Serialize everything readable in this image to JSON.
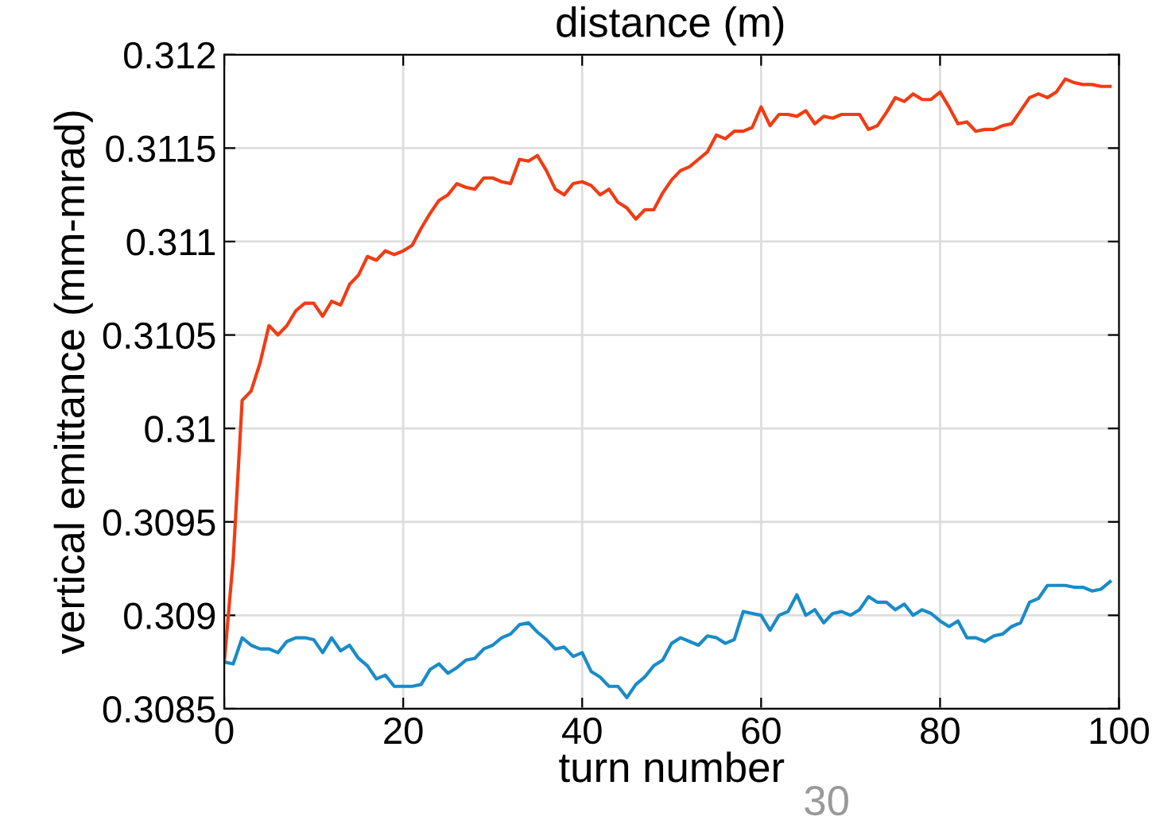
{
  "chart_data": {
    "type": "line",
    "xlabel": "turn number",
    "ylabel": "vertical emittance (mm-mrad)",
    "annotations": [
      "distance (m)",
      "30"
    ],
    "x": [
      0,
      1,
      2,
      3,
      4,
      5,
      6,
      7,
      8,
      9,
      10,
      11,
      12,
      13,
      14,
      15,
      16,
      17,
      18,
      19,
      20,
      21,
      22,
      23,
      24,
      25,
      26,
      27,
      28,
      29,
      30,
      31,
      32,
      33,
      34,
      35,
      36,
      37,
      38,
      39,
      40,
      41,
      42,
      43,
      44,
      45,
      46,
      47,
      48,
      49,
      50,
      51,
      52,
      53,
      54,
      55,
      56,
      57,
      58,
      59,
      60,
      61,
      62,
      63,
      64,
      65,
      66,
      67,
      68,
      69,
      70,
      71,
      72,
      73,
      74,
      75,
      76,
      77,
      78,
      79,
      80,
      81,
      82,
      83,
      84,
      85,
      86,
      87,
      88,
      89,
      90,
      91,
      92,
      93,
      94,
      95,
      96,
      97,
      98,
      99
    ],
    "series": [
      {
        "color": "#1a8bc8",
        "values": [
          0.30875,
          0.30874,
          0.30888,
          0.30884,
          0.30882,
          0.30882,
          0.3088,
          0.30886,
          0.30888,
          0.30888,
          0.30887,
          0.3088,
          0.30888,
          0.30881,
          0.30884,
          0.30877,
          0.30873,
          0.30866,
          0.30868,
          0.30862,
          0.30862,
          0.30862,
          0.30863,
          0.30871,
          0.30874,
          0.30869,
          0.30872,
          0.30876,
          0.30877,
          0.30882,
          0.30884,
          0.30888,
          0.3089,
          0.30895,
          0.30896,
          0.30891,
          0.30887,
          0.30882,
          0.30883,
          0.30878,
          0.3088,
          0.3087,
          0.30867,
          0.30862,
          0.30862,
          0.30856,
          0.30863,
          0.30867,
          0.30873,
          0.30876,
          0.30885,
          0.30888,
          0.30886,
          0.30884,
          0.30889,
          0.30888,
          0.30885,
          0.30887,
          0.30902,
          0.30901,
          0.309,
          0.30892,
          0.309,
          0.30902,
          0.30911,
          0.309,
          0.30903,
          0.30896,
          0.30901,
          0.30902,
          0.309,
          0.30903,
          0.3091,
          0.30907,
          0.30907,
          0.30903,
          0.30906,
          0.309,
          0.30903,
          0.30901,
          0.30897,
          0.30894,
          0.30897,
          0.30888,
          0.30888,
          0.30886,
          0.30889,
          0.3089,
          0.30894,
          0.30896,
          0.30907,
          0.30909,
          0.30916,
          0.30916,
          0.30916,
          0.30915,
          0.30915,
          0.30913,
          0.30914,
          0.30918
        ]
      },
      {
        "color": "#f03c14",
        "values": [
          0.30875,
          0.3093,
          0.31015,
          0.3102,
          0.31035,
          0.31055,
          0.3105,
          0.31055,
          0.31063,
          0.31067,
          0.31067,
          0.3106,
          0.31068,
          0.31066,
          0.31077,
          0.31082,
          0.31092,
          0.3109,
          0.31095,
          0.31093,
          0.31095,
          0.31098,
          0.31107,
          0.31115,
          0.31122,
          0.31125,
          0.31131,
          0.31129,
          0.31128,
          0.31134,
          0.31134,
          0.31132,
          0.31131,
          0.31144,
          0.31143,
          0.31146,
          0.31138,
          0.31128,
          0.31125,
          0.31131,
          0.31132,
          0.3113,
          0.31125,
          0.31128,
          0.31121,
          0.31118,
          0.31112,
          0.31117,
          0.31117,
          0.31126,
          0.31133,
          0.31138,
          0.3114,
          0.31144,
          0.31148,
          0.31157,
          0.31155,
          0.31159,
          0.31159,
          0.31161,
          0.31172,
          0.31162,
          0.31168,
          0.31168,
          0.31167,
          0.3117,
          0.31163,
          0.31167,
          0.31166,
          0.31168,
          0.31168,
          0.31168,
          0.3116,
          0.31162,
          0.31169,
          0.31177,
          0.31175,
          0.31179,
          0.31176,
          0.31176,
          0.3118,
          0.31172,
          0.31163,
          0.31164,
          0.31159,
          0.3116,
          0.3116,
          0.31162,
          0.31163,
          0.3117,
          0.31177,
          0.31179,
          0.31177,
          0.3118,
          0.31187,
          0.31185,
          0.31184,
          0.31184,
          0.31183,
          0.31183
        ]
      }
    ],
    "xlim": [
      0,
      100
    ],
    "xticks": [
      0,
      20,
      40,
      60,
      80,
      100
    ],
    "ylim": [
      0.3085,
      0.312
    ],
    "yticks": [
      {
        "value": 0.3085,
        "label": "0.3085"
      },
      {
        "value": 0.309,
        "label": "0.309"
      },
      {
        "value": 0.3095,
        "label": "0.3095"
      },
      {
        "value": 0.31,
        "label": "0.31"
      },
      {
        "value": 0.3105,
        "label": "0.3105"
      },
      {
        "value": 0.311,
        "label": "0.311"
      },
      {
        "value": 0.3115,
        "label": "0.3115"
      },
      {
        "value": 0.312,
        "label": "0.312"
      }
    ],
    "grid": true,
    "line_style": "solid",
    "marker": "none"
  }
}
